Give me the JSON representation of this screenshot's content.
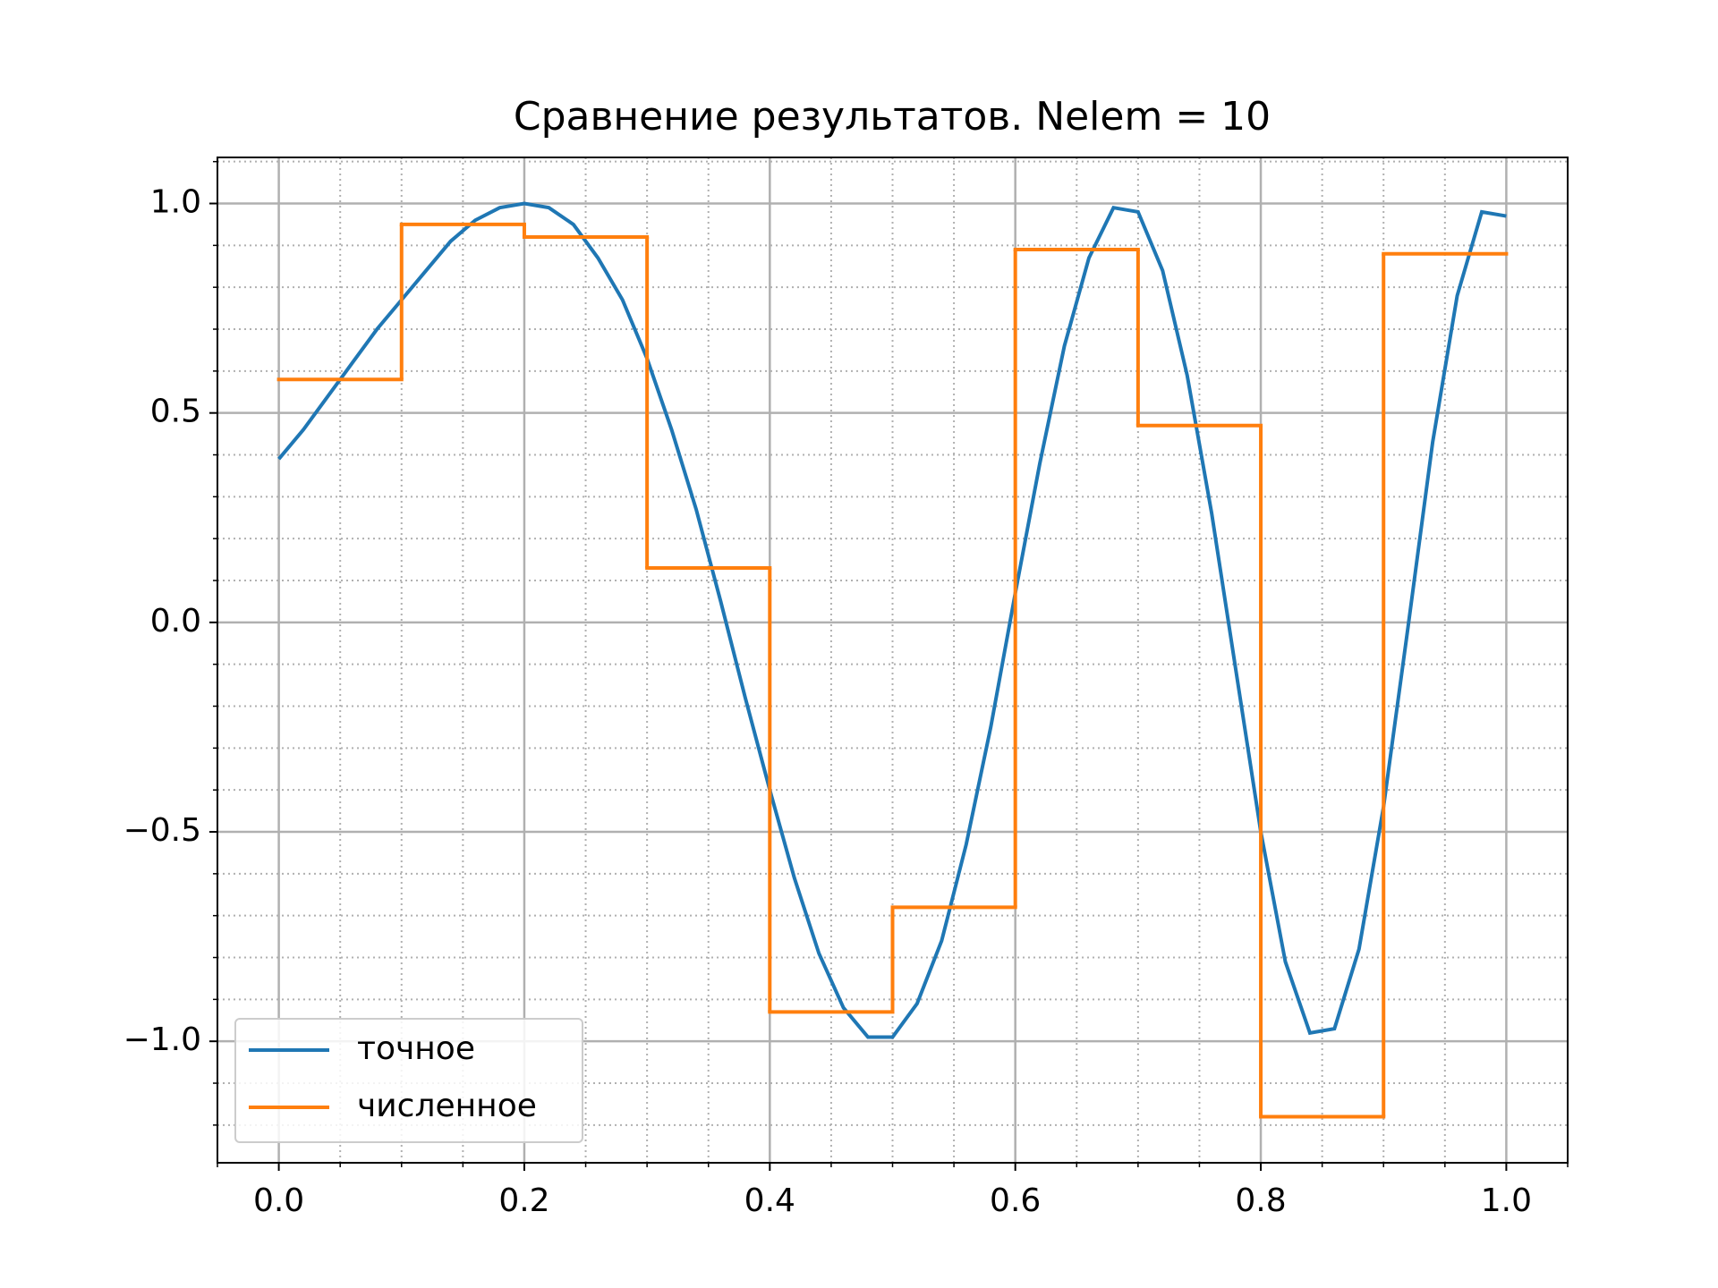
{
  "chart_data": {
    "type": "line",
    "title": "Сравнение результатов. Nelem = 10",
    "xlim": [
      -0.05,
      1.05
    ],
    "ylim": [
      -1.29,
      1.11
    ],
    "xticks": [
      {
        "value": 0,
        "label": "0.0"
      },
      {
        "value": 0.2,
        "label": "0.2"
      },
      {
        "value": 0.4,
        "label": "0.4"
      },
      {
        "value": 0.6,
        "label": "0.6"
      },
      {
        "value": 0.8,
        "label": "0.8"
      },
      {
        "value": 1,
        "label": "1.0"
      }
    ],
    "yticks": [
      {
        "value": -1,
        "label": "−1.0"
      },
      {
        "value": -0.5,
        "label": "−0.5"
      },
      {
        "value": 0,
        "label": "0.0"
      },
      {
        "value": 0.5,
        "label": "0.5"
      },
      {
        "value": 1,
        "label": "1.0"
      }
    ],
    "xticks_minor": [
      -0.05,
      0.05,
      0.1,
      0.15,
      0.25,
      0.3,
      0.35,
      0.45,
      0.5,
      0.55,
      0.65,
      0.7,
      0.75,
      0.85,
      0.9,
      0.95,
      1.05
    ],
    "yticks_minor": [
      -1.2,
      -1.1,
      -0.9,
      -0.8,
      -0.7,
      -0.6,
      -0.4,
      -0.3,
      -0.2,
      -0.1,
      0.1,
      0.2,
      0.3,
      0.4,
      0.6,
      0.7,
      0.8,
      0.9,
      1.1
    ],
    "grid": true,
    "legend": "lower left",
    "series": [
      {
        "name": "точное",
        "color": "#1f77b4",
        "x": [
          0,
          0.02,
          0.04,
          0.06,
          0.08,
          0.1,
          0.12,
          0.14,
          0.16,
          0.18,
          0.2,
          0.22,
          0.24,
          0.26,
          0.28,
          0.3,
          0.32,
          0.34,
          0.36,
          0.38,
          0.4,
          0.42,
          0.44,
          0.46,
          0.48,
          0.5,
          0.52,
          0.54,
          0.56,
          0.58,
          0.6,
          0.62,
          0.64,
          0.66,
          0.68,
          0.7,
          0.72,
          0.74,
          0.76,
          0.78,
          0.8,
          0.82,
          0.84,
          0.86,
          0.88,
          0.9,
          0.92,
          0.94,
          0.96,
          0.98,
          1.0
        ],
        "values": [
          0.39,
          0.46,
          0.54,
          0.62,
          0.7,
          0.77,
          0.84,
          0.91,
          0.96,
          0.99,
          1.0,
          0.99,
          0.95,
          0.87,
          0.77,
          0.63,
          0.46,
          0.27,
          0.05,
          -0.18,
          -0.4,
          -0.61,
          -0.79,
          -0.92,
          -0.99,
          -0.99,
          -0.91,
          -0.76,
          -0.53,
          -0.25,
          0.07,
          0.38,
          0.66,
          0.87,
          0.99,
          0.98,
          0.84,
          0.59,
          0.26,
          -0.12,
          -0.5,
          -0.81,
          -0.98,
          -0.97,
          -0.78,
          -0.44,
          -0.01,
          0.43,
          0.78,
          0.98,
          0.97
        ]
      },
      {
        "name": "численное",
        "color": "#ff7f0e",
        "bins": [
          0,
          0.1,
          0.2,
          0.3,
          0.4,
          0.5,
          0.6,
          0.7,
          0.8,
          0.9,
          1.0
        ],
        "values": [
          0.58,
          0.95,
          0.92,
          0.13,
          -0.93,
          -0.68,
          0.89,
          0.47,
          -1.18,
          0.88
        ]
      }
    ]
  }
}
